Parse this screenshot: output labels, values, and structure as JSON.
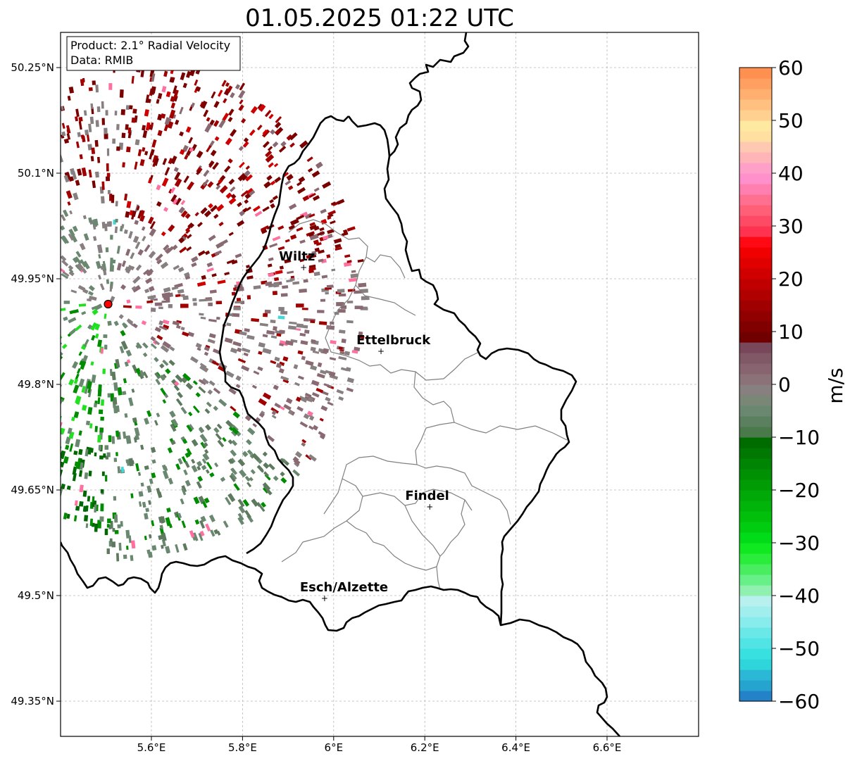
{
  "title": "01.05.2025 01:22 UTC",
  "info": {
    "product": "Product: 2.1° Radial Velocity",
    "data_source": "Data: RMIB"
  },
  "map": {
    "lon_range": [
      5.4,
      6.8
    ],
    "lat_range": [
      49.3,
      50.3
    ],
    "lon_ticks": [
      {
        "value": 5.6,
        "label": "5.6°E"
      },
      {
        "value": 5.8,
        "label": "5.8°E"
      },
      {
        "value": 6.0,
        "label": "6°E"
      },
      {
        "value": 6.2,
        "label": "6.2°E"
      },
      {
        "value": 6.4,
        "label": "6.4°E"
      },
      {
        "value": 6.6,
        "label": "6.6°E"
      }
    ],
    "lat_ticks": [
      {
        "value": 50.25,
        "label": "50.25°N"
      },
      {
        "value": 50.1,
        "label": "50.1°N"
      },
      {
        "value": 49.95,
        "label": "49.95°N"
      },
      {
        "value": 49.8,
        "label": "49.8°N"
      },
      {
        "value": 49.65,
        "label": "49.65°N"
      },
      {
        "value": 49.5,
        "label": "49.5°N"
      },
      {
        "value": 49.35,
        "label": "49.35°N"
      }
    ],
    "grid": true,
    "cities": [
      {
        "name": "Wiltz",
        "lon": 5.934,
        "lat": 49.966
      },
      {
        "name": "Ettelbruck",
        "lon": 6.104,
        "lat": 49.847
      },
      {
        "name": "Findel",
        "lon": 6.211,
        "lat": 49.626
      },
      {
        "name": "Esch/Alzette",
        "lon": 5.98,
        "lat": 49.496
      }
    ],
    "radar_site": {
      "lon": 5.505,
      "lat": 49.914
    },
    "colors": {
      "border": "#000000",
      "cantons": "#808080",
      "radar_site": "#ff0000"
    }
  },
  "colorbar": {
    "label": "m/s",
    "min": -60,
    "max": 60,
    "ticks": [
      {
        "value": 60,
        "label": "60"
      },
      {
        "value": 50,
        "label": "50"
      },
      {
        "value": 40,
        "label": "40"
      },
      {
        "value": 30,
        "label": "30"
      },
      {
        "value": 20,
        "label": "20"
      },
      {
        "value": 10,
        "label": "10"
      },
      {
        "value": 0,
        "label": "0"
      },
      {
        "value": -10,
        "label": "−10"
      },
      {
        "value": -20,
        "label": "−20"
      },
      {
        "value": -30,
        "label": "−30"
      },
      {
        "value": -40,
        "label": "−40"
      },
      {
        "value": -50,
        "label": "−50"
      },
      {
        "value": -60,
        "label": "−60"
      }
    ],
    "stops": [
      "#2482c8",
      "#25a4d0",
      "#2ab8d6",
      "#2ed6dc",
      "#38e0e0",
      "#50e4e4",
      "#6ae8e8",
      "#88ecec",
      "#a0eeee",
      "#b8f0f0",
      "#90f0b0",
      "#68f088",
      "#48ee60",
      "#2aec3a",
      "#10e820",
      "#00dc18",
      "#00cc10",
      "#00c00c",
      "#00b40a",
      "#00a808",
      "#009c06",
      "#009004",
      "#008404",
      "#007802",
      "#006c00",
      "#4a7a4a",
      "#5a8060",
      "#6a8870",
      "#7a8676",
      "#888080",
      "#8a7278",
      "#886470",
      "#805866",
      "#78485a",
      "#700000",
      "#800000",
      "#900000",
      "#a00000",
      "#b00000",
      "#c00000",
      "#d00000",
      "#e00000",
      "#f00000",
      "#ff0a14",
      "#ff3250",
      "#ff4a66",
      "#ff6078",
      "#ff7090",
      "#ff80b0",
      "#ff90cc",
      "#ffa0c8",
      "#ffb4b8",
      "#ffc8b0",
      "#ffe0a0",
      "#ffe8a0",
      "#ffd090",
      "#ffc080",
      "#ffb070",
      "#ffa060",
      "#ff9050"
    ]
  },
  "velocity_colors": {
    "outbound_dark": "#7a0000",
    "outbound_mid": "#a00000",
    "outbound_bright": "#d00000",
    "near_zero_pos": "#8a6a72",
    "near_zero": "#888080",
    "near_zero_neg": "#6a8870",
    "inbound_dark": "#006800",
    "inbound_mid": "#008c00",
    "inbound_bright": "#20e020",
    "pink": "#ff70a0",
    "cyan": "#40d8d8"
  }
}
